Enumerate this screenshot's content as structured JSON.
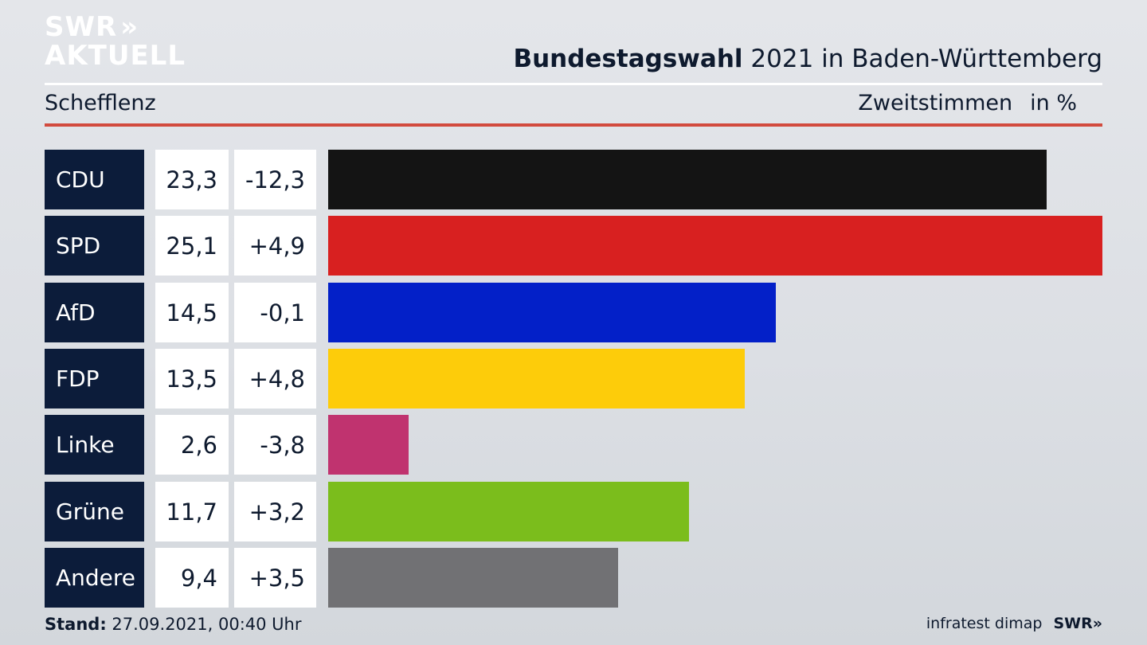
{
  "logo": {
    "line1": "SWR",
    "line2": "AKTUELL",
    "chevron": "»"
  },
  "header": {
    "title_bold": "Bundestagswahl",
    "title_rest": " 2021 in Baden-Württemberg",
    "location": "Schefflenz",
    "measure": "Zweitstimmen",
    "unit": "in %"
  },
  "chart_data": {
    "type": "bar",
    "orientation": "horizontal",
    "categories": [
      "CDU",
      "SPD",
      "AfD",
      "FDP",
      "Linke",
      "Grüne",
      "Andere"
    ],
    "values": [
      23.3,
      25.1,
      14.5,
      13.5,
      2.6,
      11.7,
      9.4
    ],
    "value_labels": [
      "23,3",
      "25,1",
      "14,5",
      "13,5",
      "2,6",
      "11,7",
      "9,4"
    ],
    "changes": [
      -12.3,
      4.9,
      -0.1,
      4.8,
      -3.8,
      3.2,
      3.5
    ],
    "change_labels": [
      "-12,3",
      "+4,9",
      "-0,1",
      "+4,8",
      "-3,8",
      "+3,2",
      "+3,5"
    ],
    "colors": [
      "#141414",
      "#d82020",
      "#0320c8",
      "#fdcc0a",
      "#c0336f",
      "#7bbd1c",
      "#717174"
    ],
    "xlim": [
      0,
      25.1
    ]
  },
  "footer": {
    "stand_label": "Stand:",
    "stand_value": " 27.09.2021, 00:40 Uhr",
    "source": "infratest dimap",
    "brand": "SWR",
    "brand_chevron": "»"
  }
}
